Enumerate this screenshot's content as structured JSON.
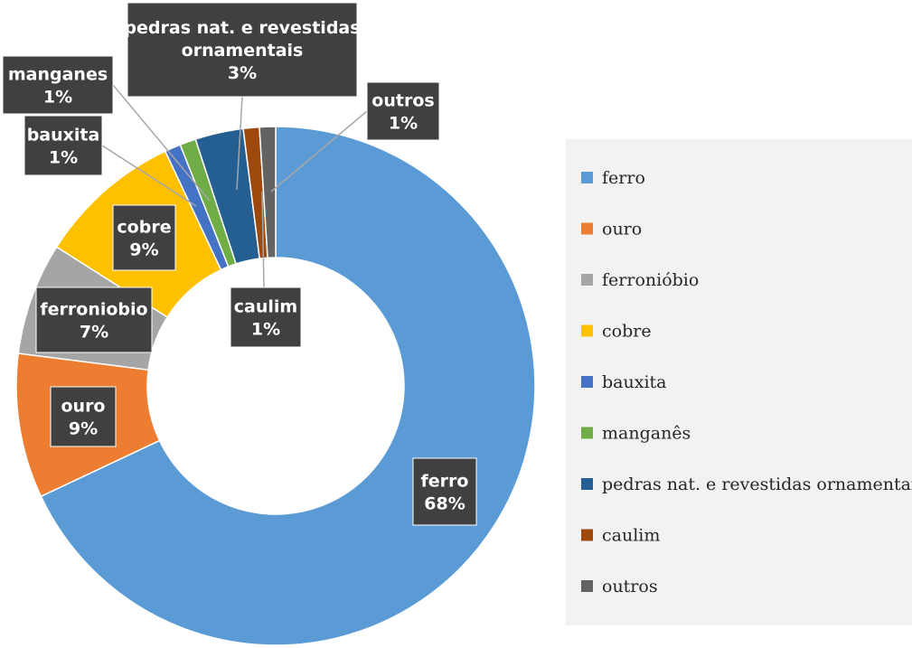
{
  "chart_data": {
    "type": "pie",
    "variant": "donut",
    "categories": [
      "ferro",
      "ouro",
      "ferronióbio",
      "cobre",
      "bauxita",
      "manganês",
      "pedras nat. e revestidas ornamentais",
      "caulim",
      "outros"
    ],
    "values": [
      68,
      9,
      7,
      9,
      1,
      1,
      3,
      1,
      1
    ],
    "data_labels": [
      {
        "name": "ferro",
        "value": "68%"
      },
      {
        "name": "ouro",
        "value": "9%"
      },
      {
        "name": "ferroniobio",
        "value": "7%"
      },
      {
        "name": "cobre",
        "value": "9%"
      },
      {
        "name": "bauxita",
        "value": "1%"
      },
      {
        "name": "manganes",
        "value": "1%"
      },
      {
        "name": "pedras nat. e revestidas",
        "name2": "ornamentais",
        "value": "3%"
      },
      {
        "name": "caulim",
        "value": "1%"
      },
      {
        "name": "outros",
        "value": "1%"
      }
    ],
    "colors": [
      "#5b9bd5",
      "#ed7d31",
      "#a5a5a5",
      "#ffc000",
      "#4472c4",
      "#70ad47",
      "#255e91",
      "#9e480e",
      "#636363"
    ],
    "legend": {
      "position": "right",
      "items": [
        "ferro",
        "ouro",
        "ferronióbio",
        "cobre",
        "bauxita",
        "manganês",
        "pedras nat. e revestidas ornamentais",
        "caulim",
        "outros"
      ]
    },
    "title": ""
  }
}
